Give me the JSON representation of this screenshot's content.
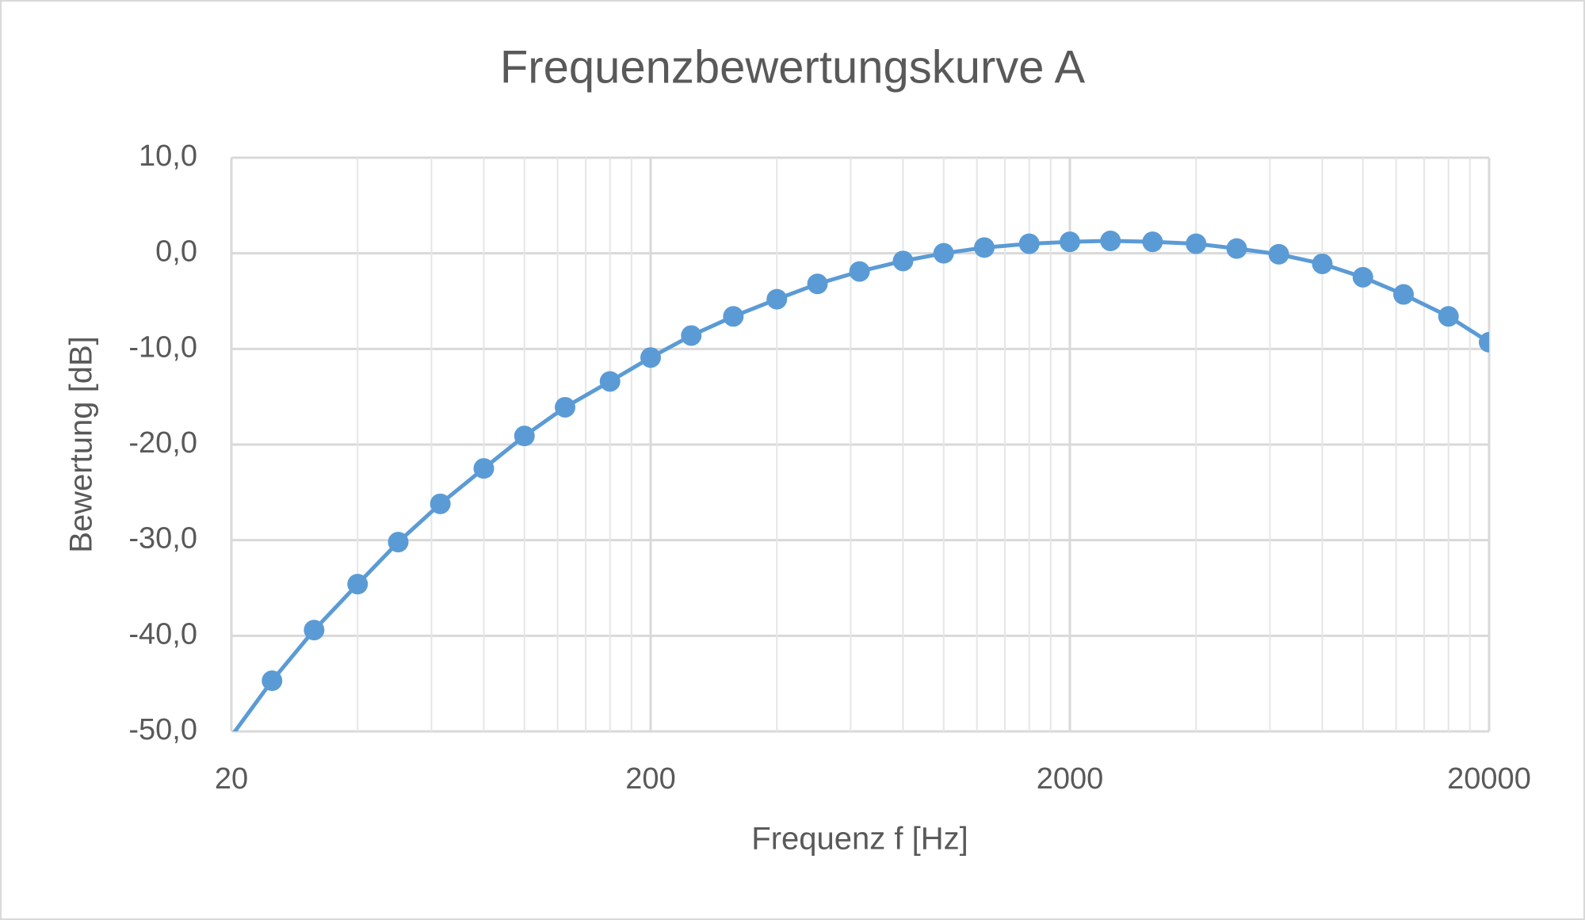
{
  "chart_data": {
    "type": "line",
    "title": "Frequenzbewertungskurve A",
    "x_label": "Frequenz f [Hz]",
    "y_label": "Bewertung [dB]",
    "x_scale": "log",
    "x": [
      20,
      25,
      31.5,
      40,
      50,
      63,
      80,
      100,
      125,
      160,
      200,
      250,
      315,
      400,
      500,
      630,
      800,
      1000,
      1250,
      1600,
      2000,
      2500,
      3150,
      4000,
      5000,
      6300,
      8000,
      10000,
      12500,
      16000,
      20000
    ],
    "series": [
      {
        "name": "A",
        "color": "#5b9bd5",
        "values": [
          -50.5,
          -44.7,
          -39.4,
          -34.6,
          -30.2,
          -26.2,
          -22.5,
          -19.1,
          -16.1,
          -13.4,
          -10.9,
          -8.6,
          -6.6,
          -4.8,
          -3.2,
          -1.9,
          -0.8,
          0,
          0.6,
          1.0,
          1.2,
          1.3,
          1.2,
          1.0,
          0.5,
          -0.1,
          -1.1,
          -2.5,
          -4.3,
          -6.6,
          -9.3
        ]
      }
    ],
    "xlim": [
      20,
      20000
    ],
    "xticks": [
      20,
      200,
      2000,
      20000
    ],
    "ylim": [
      -50,
      10
    ],
    "yticks": [
      {
        "value": -50,
        "label": "-50,0"
      },
      {
        "value": -40,
        "label": "-40,0"
      },
      {
        "value": -30,
        "label": "-30,0"
      },
      {
        "value": -20,
        "label": "-20,0"
      },
      {
        "value": -10,
        "label": "-10,0"
      },
      {
        "value": 0,
        "label": "0,0"
      },
      {
        "value": 10,
        "label": "10,0"
      }
    ],
    "grid": true,
    "minor_grid": true,
    "markers": true
  }
}
